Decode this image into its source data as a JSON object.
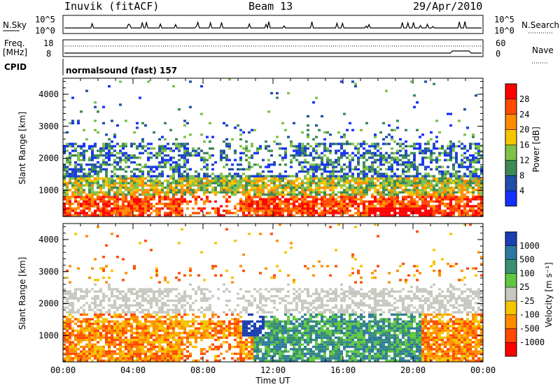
{
  "header": {
    "station": "Inuvik (fitACF)",
    "beam": "Beam 13",
    "date": "29/Apr/2010"
  },
  "strips": {
    "nsky_label": "N.Sky",
    "nsky_ticks": [
      "10^5",
      "10^0"
    ],
    "nsearch_label": "N.Search",
    "nsearch_ticks": [
      "10^5",
      "10^0"
    ],
    "freq_label": "Freq.",
    "freq_unit": "[MHz]",
    "freq_ticks": [
      "18",
      "8"
    ],
    "nave_label": "Nave",
    "nave_ticks": [
      "60",
      "0"
    ],
    "cpid_label": "CPID",
    "cpid_value": "normalsound (fast) 157"
  },
  "chart_data": [
    {
      "type": "heatmap",
      "name": "power",
      "ylabel": "Slant Range [km]",
      "xlabel": "",
      "yticks": [
        "1000",
        "2000",
        "3000",
        "4000"
      ],
      "yrange": [
        180,
        4500
      ],
      "colorbar_label": "Power [dB]",
      "colorbar_ticks": [
        "4",
        "8",
        "12",
        "16",
        "20",
        "24",
        "28"
      ],
      "colors": [
        "#1530ff",
        "#1f4fa8",
        "#3c8a55",
        "#7ec24a",
        "#f5c400",
        "#ff8c00",
        "#ff4a00",
        "#ff0000"
      ],
      "time_range": [
        "00:00",
        "24:00"
      ]
    },
    {
      "type": "heatmap",
      "name": "velocity",
      "ylabel": "Slant Range [km]",
      "xlabel": "Time UT",
      "xticks": [
        "00:00",
        "04:00",
        "08:00",
        "12:00",
        "16:00",
        "20:00",
        "00:00"
      ],
      "yticks": [
        "1000",
        "2000",
        "3000",
        "4000"
      ],
      "yrange": [
        180,
        4500
      ],
      "colorbar_label": "Velocity [m s⁻¹]",
      "colorbar_ticks": [
        "1000",
        "500",
        "100",
        "25",
        "-25",
        "-100",
        "-500",
        "-1000"
      ],
      "colors": [
        "#1a3fb0",
        "#2d7aa0",
        "#3a9070",
        "#60c840",
        "#c8c8c0",
        "#f5c400",
        "#ff8c00",
        "#ff4a00",
        "#ff0000"
      ],
      "time_range": [
        "00:00",
        "24:00"
      ]
    }
  ]
}
